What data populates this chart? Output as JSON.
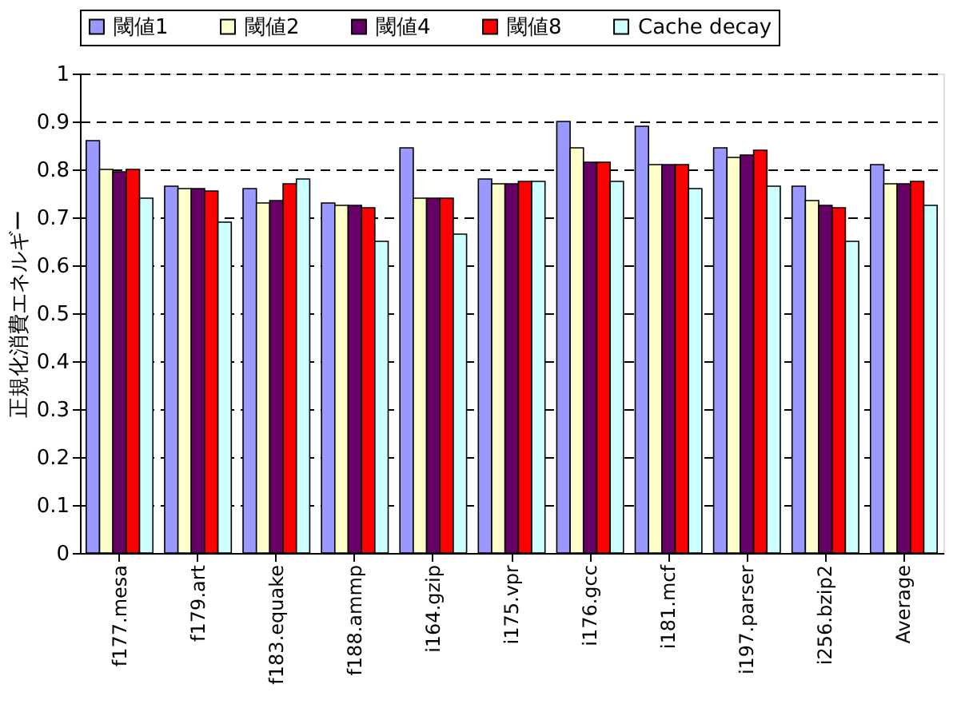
{
  "chart_data": {
    "type": "bar",
    "ylabel": "正規化消費エネルギー",
    "categories": [
      "f177.mesa",
      "f179.art",
      "f183.equake",
      "f188.ammp",
      "i164.gzip",
      "i175.vpr",
      "i176.gcc",
      "i181.mcf",
      "i197.parser",
      "i256.bzip2",
      "Average"
    ],
    "series": [
      {
        "name": "閾値1",
        "color": "#9999ff",
        "values": [
          0.86,
          0.765,
          0.76,
          0.73,
          0.845,
          0.78,
          0.9,
          0.89,
          0.845,
          0.765,
          0.81
        ]
      },
      {
        "name": "閾値2",
        "color": "#ffffcc",
        "values": [
          0.8,
          0.76,
          0.73,
          0.725,
          0.74,
          0.77,
          0.845,
          0.81,
          0.825,
          0.735,
          0.77
        ]
      },
      {
        "name": "閾値4",
        "color": "#660066",
        "values": [
          0.795,
          0.76,
          0.735,
          0.725,
          0.74,
          0.77,
          0.815,
          0.81,
          0.83,
          0.725,
          0.77
        ]
      },
      {
        "name": "閾値8",
        "color": "#ff0000",
        "values": [
          0.8,
          0.755,
          0.77,
          0.72,
          0.74,
          0.775,
          0.815,
          0.81,
          0.84,
          0.72,
          0.775
        ]
      },
      {
        "name": "Cache decay",
        "color": "#ccffff",
        "values": [
          0.74,
          0.69,
          0.78,
          0.65,
          0.665,
          0.775,
          0.775,
          0.76,
          0.765,
          0.65,
          0.725
        ]
      }
    ],
    "ylim": [
      0,
      1
    ],
    "yticks": [
      0,
      0.1,
      0.2,
      0.3,
      0.4,
      0.5,
      0.6,
      0.7,
      0.8,
      0.9,
      1
    ],
    "grid": "y",
    "legend": "top"
  }
}
